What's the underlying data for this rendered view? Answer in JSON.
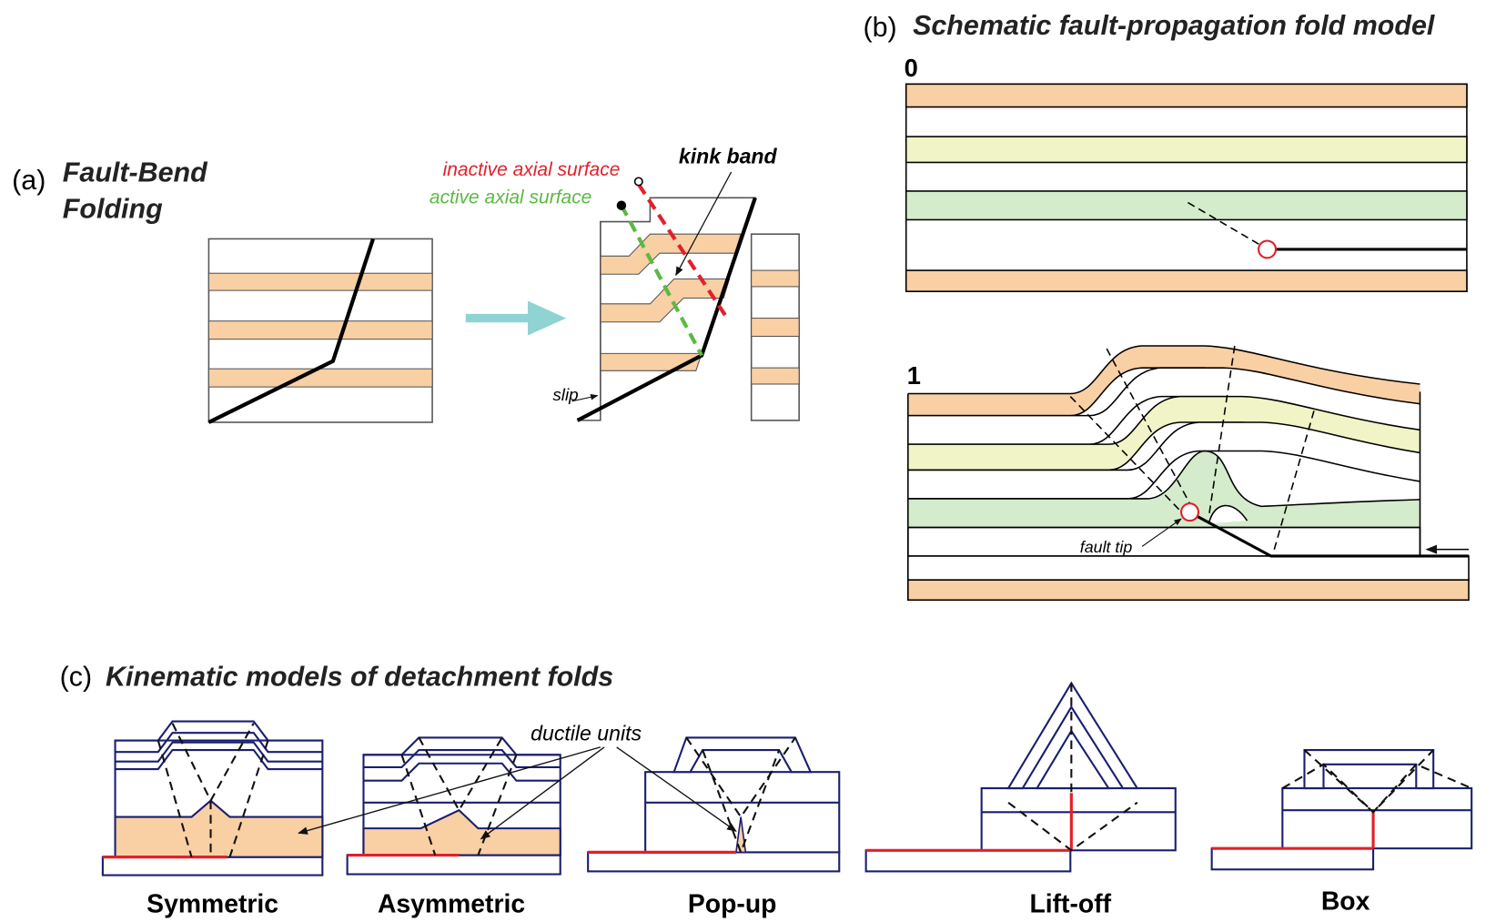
{
  "panel_a": {
    "label": "(a)",
    "title_lines": [
      "Fault-Bend",
      "Folding"
    ],
    "annotations": {
      "inactive": "inactive axial surface",
      "active": "active axial surface",
      "kink": "kink band",
      "slip": "slip"
    }
  },
  "panel_b": {
    "label": "(b)",
    "title": "Schematic fault-propagation fold model",
    "stages": [
      "0",
      "1"
    ],
    "fault_tip": "fault tip"
  },
  "panel_c": {
    "label": "(c)",
    "title": "Kinematic models of detachment folds",
    "ductile_units": "ductile units",
    "models": [
      "Symmetric",
      "Asymmetric",
      "Pop-up",
      "Lift-off",
      "Box"
    ]
  }
}
